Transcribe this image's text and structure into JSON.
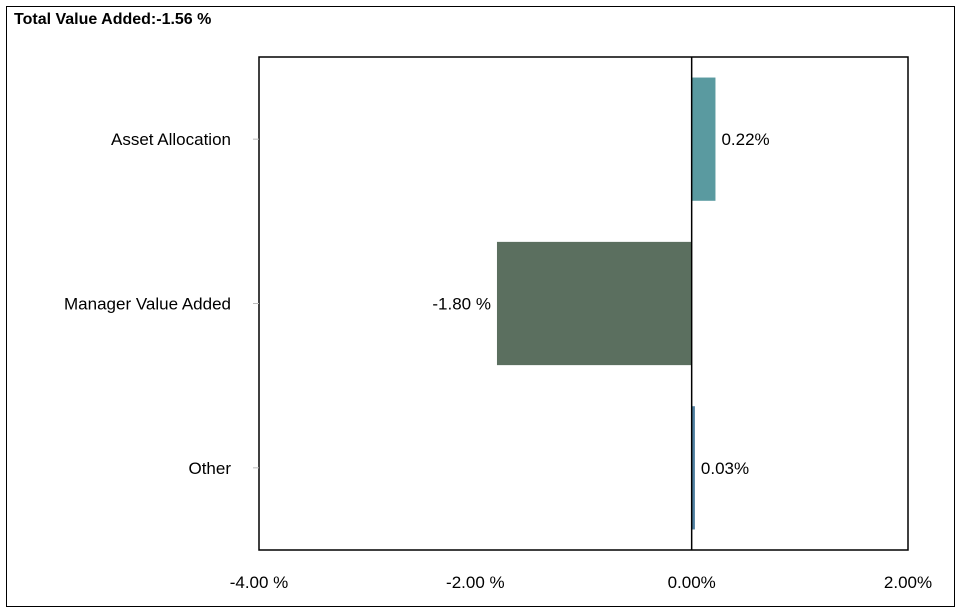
{
  "chart_data": {
    "type": "bar",
    "orientation": "horizontal",
    "title": "Total Value Added:-1.56 %",
    "categories": [
      "Asset Allocation",
      "Manager Value Added",
      "Other"
    ],
    "values": [
      0.22,
      -1.8,
      0.03
    ],
    "value_labels": [
      "0.22%",
      "-1.80 %",
      "0.03%"
    ],
    "colors": [
      "#5a9aa0",
      "#5b6f5f",
      "#4f7fa0"
    ],
    "xlim": [
      -4,
      2
    ],
    "x_ticks": [
      -4,
      -2,
      0,
      2
    ],
    "x_tick_labels": [
      "-4.00 %",
      "-2.00 %",
      "0.00%",
      "2.00%"
    ],
    "grid": false,
    "legend": "none"
  }
}
